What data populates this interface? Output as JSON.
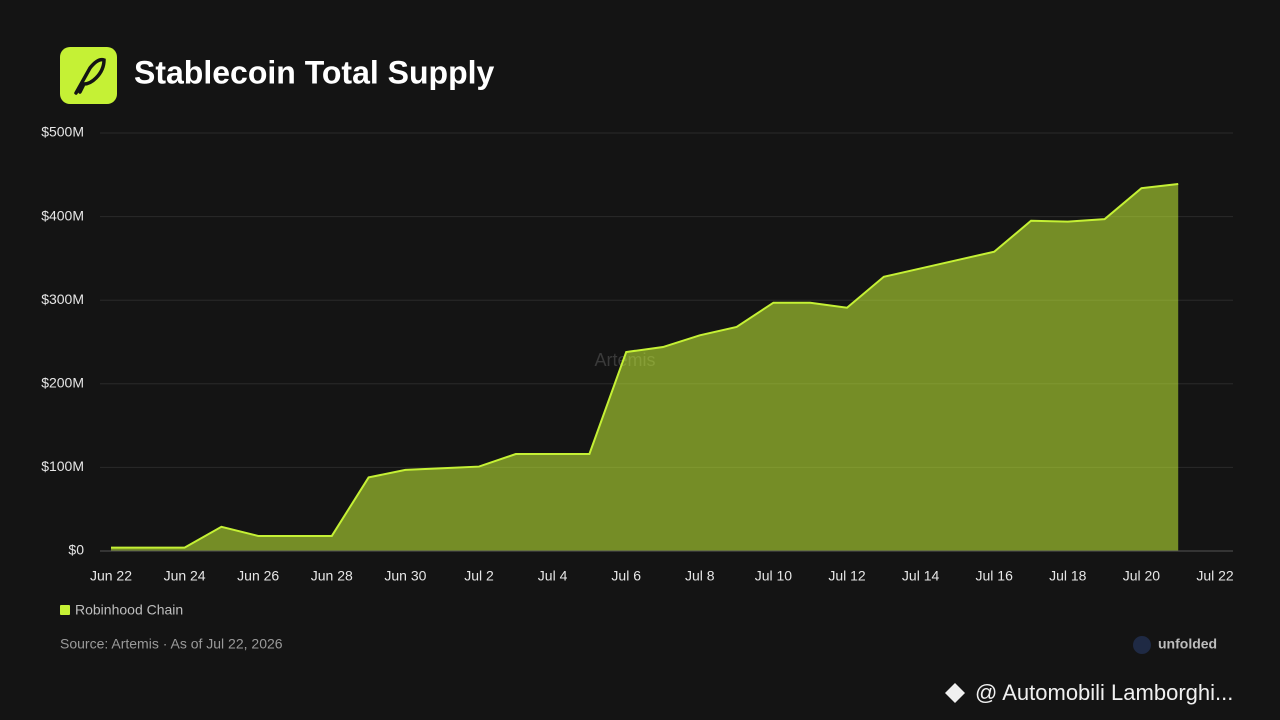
{
  "chart_data": {
    "type": "area",
    "title": "Stablecoin Total Supply",
    "categories": [
      "Jun 22",
      null,
      "Jun 24",
      null,
      "Jun 26",
      null,
      "Jun 28",
      null,
      "Jun 30",
      null,
      "Jul 2",
      null,
      "Jul 4",
      null,
      "Jul 6",
      null,
      "Jul 8",
      null,
      "Jul 10",
      null,
      "Jul 12",
      null,
      "Jul 14",
      null,
      "Jul 16",
      null,
      "Jul 18",
      null,
      "Jul 20",
      null,
      "Jul 22"
    ],
    "series": [
      {
        "name": "Robinhood Chain",
        "color": "#c5f135",
        "values": [
          4,
          4,
          4,
          29,
          18,
          18,
          18,
          88,
          97,
          99,
          101,
          116,
          116,
          116,
          238,
          244,
          258,
          268,
          297,
          297,
          291,
          328,
          338,
          348,
          358,
          395,
          394,
          397,
          434,
          439,
          null
        ]
      }
    ],
    "ylim": [
      0,
      500
    ],
    "yticks": [
      {
        "value": 0,
        "label": "$0"
      },
      {
        "value": 100,
        "label": "$100M"
      },
      {
        "value": 200,
        "label": "$200M"
      },
      {
        "value": 300,
        "label": "$300M"
      },
      {
        "value": 400,
        "label": "$400M"
      },
      {
        "value": 500,
        "label": "$500M"
      }
    ],
    "grid": true,
    "watermark": "Artemis",
    "source": "Source: Artemis · As of Jul 22, 2026",
    "brand": "unfolded",
    "footer": "@ Automobili Lamborghi..."
  }
}
